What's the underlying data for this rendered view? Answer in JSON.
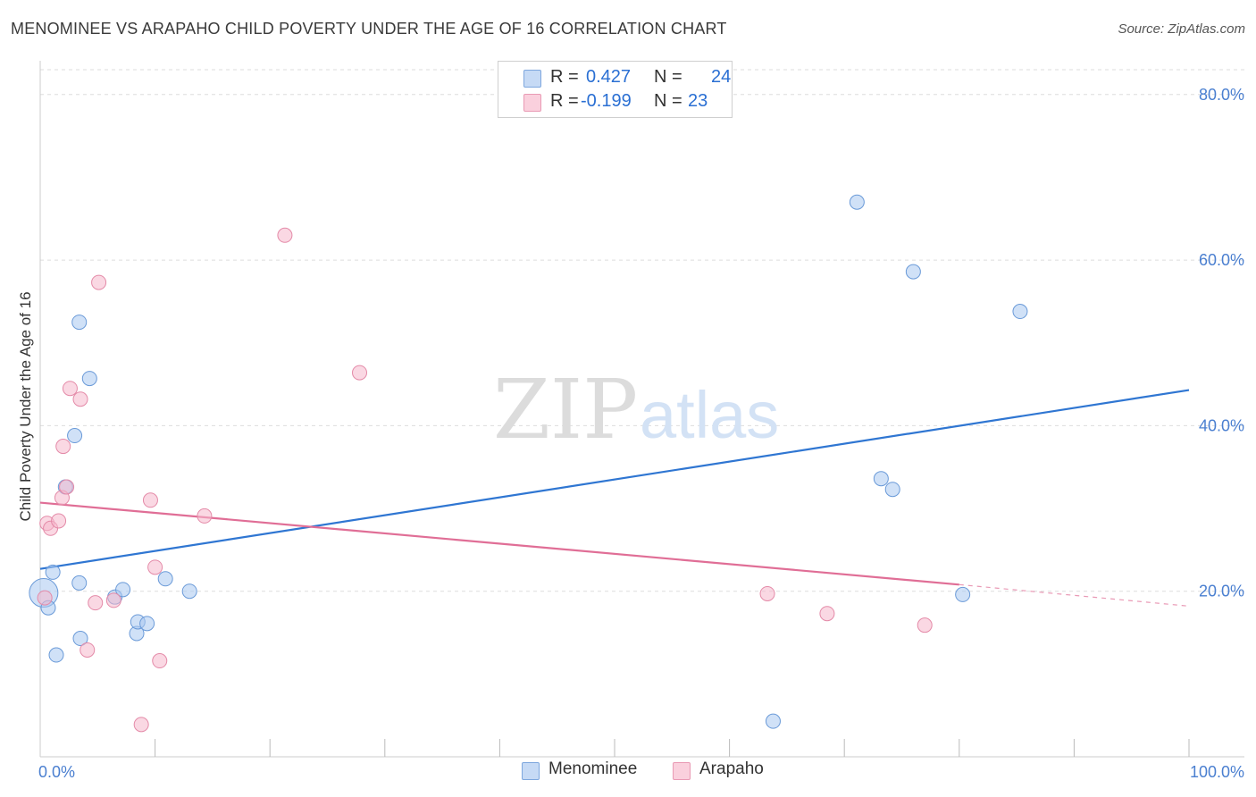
{
  "title": "MENOMINEE VS ARAPAHO CHILD POVERTY UNDER THE AGE OF 16 CORRELATION CHART",
  "source": "Source: ZipAtlas.com",
  "watermark": {
    "zip": "ZIP",
    "atlas": "atlas"
  },
  "legend": {
    "r_label": "R =",
    "n_label": "N =",
    "rows": [
      {
        "series": "Menominee",
        "r": "0.427",
        "n": "24",
        "color": "#a9c8f0"
      },
      {
        "series": "Arapaho",
        "r": "-0.199",
        "n": "23",
        "color": "#f6b8cc"
      }
    ]
  },
  "chart_data": {
    "type": "scatter",
    "title": "MENOMINEE VS ARAPAHO CHILD POVERTY UNDER THE AGE OF 16 CORRELATION CHART",
    "xlabel": "",
    "ylabel": "Child Poverty Under the Age of 16",
    "xlim": [
      0,
      100
    ],
    "ylim": [
      0,
      83
    ],
    "x_ticks": [
      "0.0%",
      "100.0%"
    ],
    "y_ticks": [
      {
        "value": 20,
        "label": "20.0%"
      },
      {
        "value": 40,
        "label": "40.0%"
      },
      {
        "value": 60,
        "label": "60.0%"
      },
      {
        "value": 80,
        "label": "80.0%"
      }
    ],
    "grid": true,
    "legend_position": "top-center",
    "series": [
      {
        "name": "Menominee",
        "color": "#a9c8f0",
        "stroke": "#6a9ad8",
        "trend_color": "#2f76d2",
        "trend": {
          "x0": 0,
          "y0": 22.7,
          "x1": 100,
          "y1": 44.3
        },
        "points": [
          [
            0.3,
            19.8
          ],
          [
            0.7,
            18.0
          ],
          [
            1.1,
            22.3
          ],
          [
            1.4,
            12.3
          ],
          [
            3.0,
            38.8
          ],
          [
            2.2,
            32.6
          ],
          [
            3.5,
            14.3
          ],
          [
            3.4,
            21.0
          ],
          [
            3.4,
            52.5
          ],
          [
            4.3,
            45.7
          ],
          [
            6.5,
            19.3
          ],
          [
            7.2,
            20.2
          ],
          [
            8.4,
            14.9
          ],
          [
            8.5,
            16.3
          ],
          [
            9.3,
            16.1
          ],
          [
            10.9,
            21.5
          ],
          [
            13.0,
            20.0
          ],
          [
            63.8,
            4.3
          ],
          [
            71.1,
            67.0
          ],
          [
            73.2,
            33.6
          ],
          [
            74.2,
            32.3
          ],
          [
            76.0,
            58.6
          ],
          [
            80.3,
            19.6
          ],
          [
            85.3,
            53.8
          ]
        ]
      },
      {
        "name": "Arapaho",
        "color": "#f6b8cc",
        "stroke": "#e48aa8",
        "trend_color": "#e06e96",
        "trend": {
          "x0": 0,
          "y0": 30.7,
          "x1": 80,
          "y1": 20.8
        },
        "trend_dashed": {
          "x0": 80,
          "y0": 20.8,
          "x1": 100,
          "y1": 18.2
        },
        "points": [
          [
            0.4,
            19.2
          ],
          [
            0.6,
            28.2
          ],
          [
            0.9,
            27.6
          ],
          [
            1.6,
            28.5
          ],
          [
            1.9,
            31.3
          ],
          [
            2.0,
            37.5
          ],
          [
            2.3,
            32.6
          ],
          [
            2.6,
            44.5
          ],
          [
            3.5,
            43.2
          ],
          [
            4.1,
            12.9
          ],
          [
            4.8,
            18.6
          ],
          [
            5.1,
            57.3
          ],
          [
            6.4,
            18.9
          ],
          [
            8.8,
            3.9
          ],
          [
            9.6,
            31.0
          ],
          [
            10.0,
            22.9
          ],
          [
            10.4,
            11.6
          ],
          [
            14.3,
            29.1
          ],
          [
            21.3,
            63.0
          ],
          [
            27.8,
            46.4
          ],
          [
            63.3,
            19.7
          ],
          [
            68.5,
            17.3
          ],
          [
            77.0,
            15.9
          ]
        ]
      }
    ]
  }
}
